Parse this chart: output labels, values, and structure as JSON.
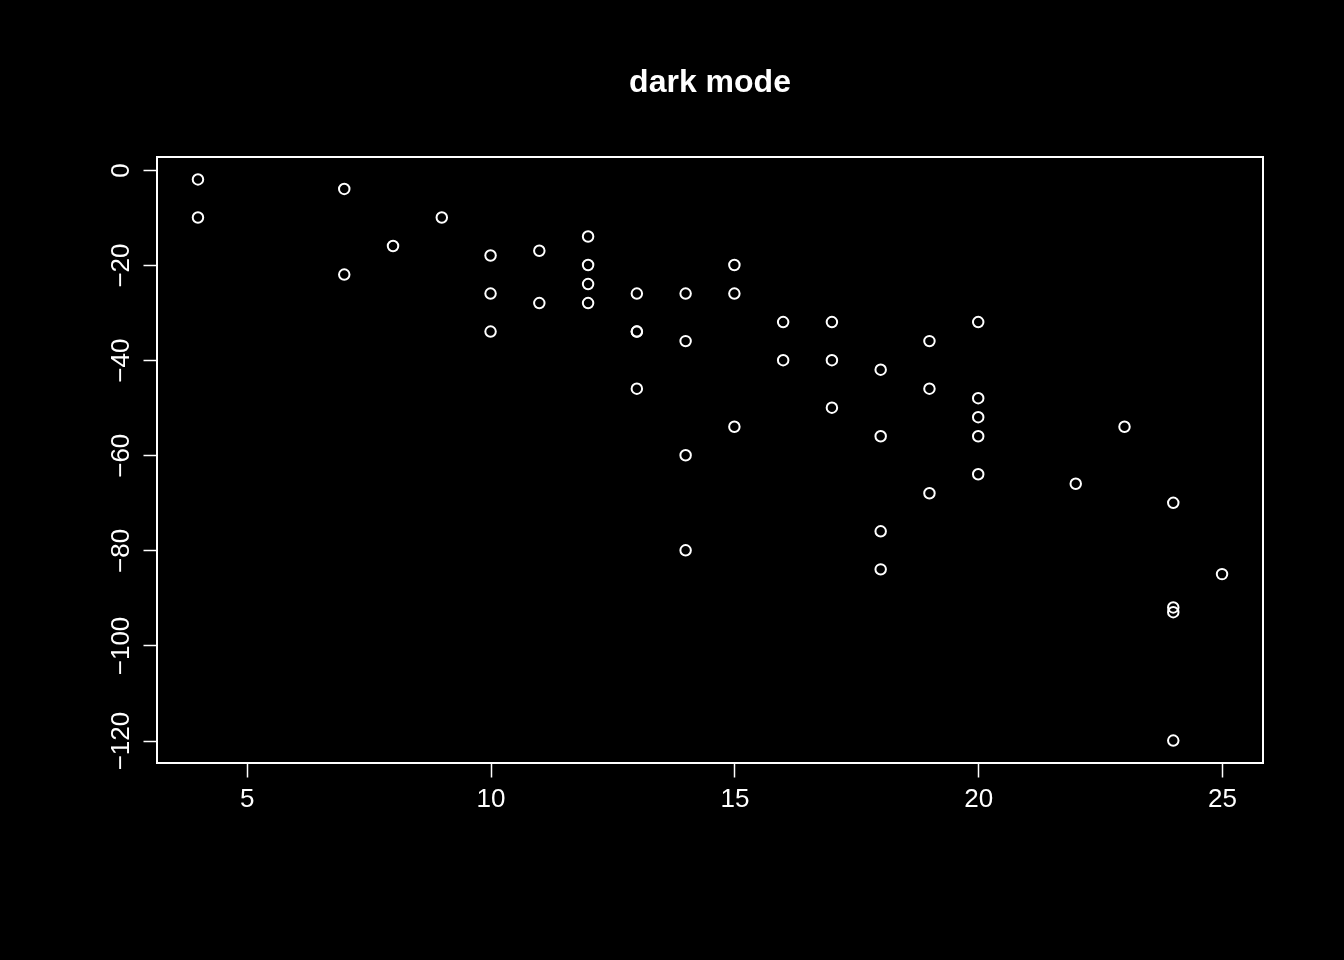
{
  "chart_data": {
    "type": "scatter",
    "title": "dark mode",
    "x": [
      4,
      4,
      7,
      7,
      8,
      9,
      10,
      10,
      10,
      11,
      11,
      12,
      12,
      12,
      12,
      13,
      13,
      13,
      13,
      14,
      14,
      14,
      14,
      15,
      15,
      15,
      16,
      16,
      17,
      17,
      17,
      18,
      18,
      18,
      18,
      19,
      19,
      19,
      20,
      20,
      20,
      20,
      20,
      22,
      23,
      24,
      24,
      24,
      24,
      25
    ],
    "values": [
      -2,
      -10,
      -4,
      -22,
      -16,
      -10,
      -18,
      -26,
      -34,
      -17,
      -28,
      -14,
      -20,
      -24,
      -28,
      -26,
      -34,
      -34,
      -46,
      -26,
      -36,
      -60,
      -80,
      -20,
      -26,
      -54,
      -32,
      -40,
      -32,
      -40,
      -50,
      -42,
      -56,
      -76,
      -84,
      -36,
      -46,
      -68,
      -32,
      -48,
      -52,
      -56,
      -64,
      -66,
      -54,
      -70,
      -92,
      -93,
      -120,
      -85
    ],
    "color": "#ffffff",
    "marker": "circle",
    "grid": false,
    "xlim": [
      3.16,
      25.84
    ],
    "ylim": [
      -124.72,
      2.72
    ],
    "xticks": [
      5,
      10,
      15,
      20,
      25
    ],
    "yticks": [
      0,
      -20,
      -40,
      -60,
      -80,
      -100,
      -120
    ]
  }
}
